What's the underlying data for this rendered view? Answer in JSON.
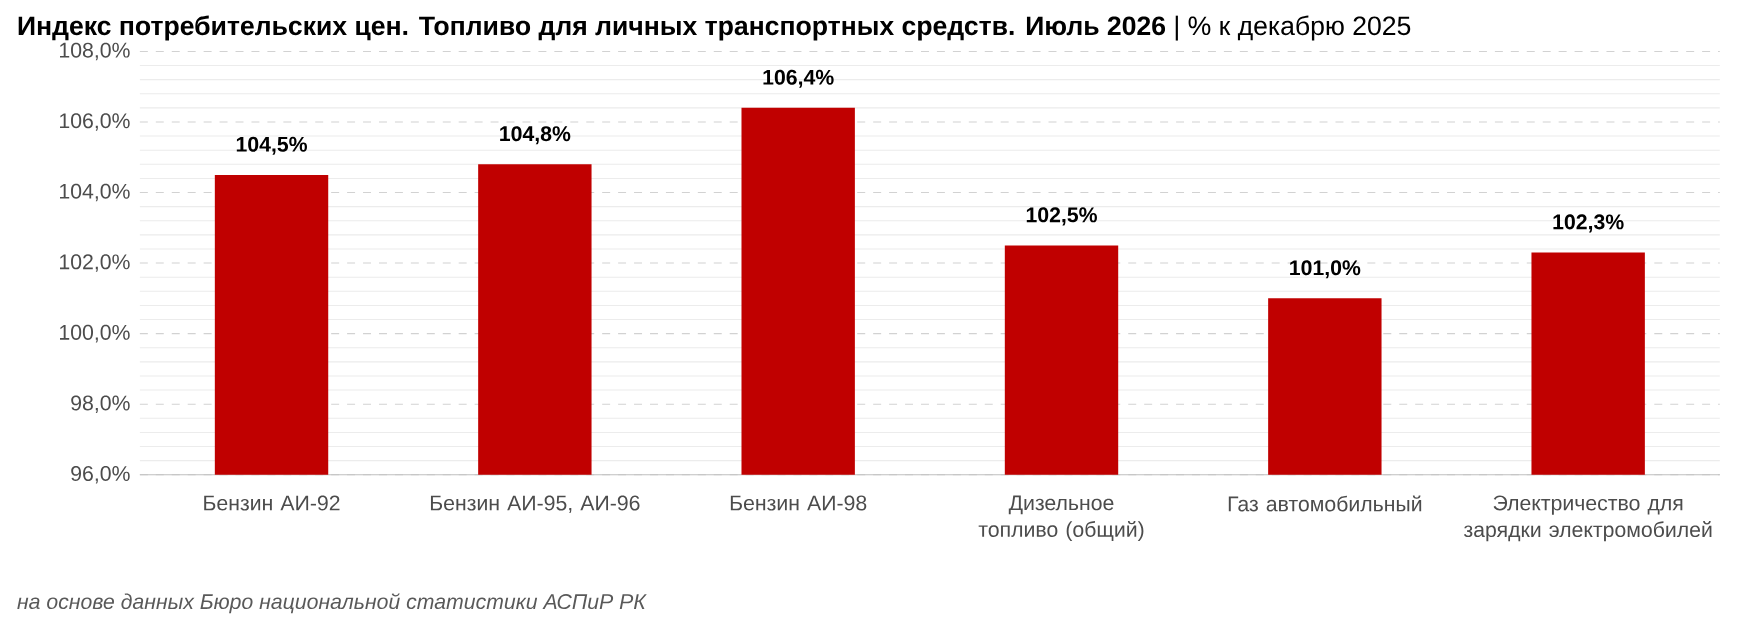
{
  "chart_data": {
    "type": "bar",
    "title": "**Индекс потребительских цен. Топливо для личных транспортных средств. Июль 2026** | % к декабрю 2025",
    "categories": [
      "Бензин АИ-92",
      "Бензин АИ-95, АИ-96",
      "Бензин АИ-98",
      "Дизельное топливо (общий)",
      "Газ автомобильный",
      "Электричество для зарядки электромобилей"
    ],
    "values": [
      104.5,
      104.8,
      106.4,
      102.5,
      101.0,
      102.3
    ],
    "value_labels": [
      "104,5%",
      "104,8%",
      "106,4%",
      "102,5%",
      "101,0%",
      "102,3%"
    ],
    "color": "#c00000",
    "ylim": [
      96,
      108
    ],
    "yticks": [
      {
        "value": 96,
        "label": "96,0%"
      },
      {
        "value": 98,
        "label": "98,0%"
      },
      {
        "value": 100,
        "label": "100,0%"
      },
      {
        "value": 102,
        "label": "102,0%"
      },
      {
        "value": 104,
        "label": "104,0%"
      },
      {
        "value": 106,
        "label": "106,0%"
      },
      {
        "value": 108,
        "label": "108,0%"
      }
    ],
    "grid": "y",
    "annotations": [
      "на основе данных Бюро национальной статистики АСПиР РК"
    ]
  }
}
